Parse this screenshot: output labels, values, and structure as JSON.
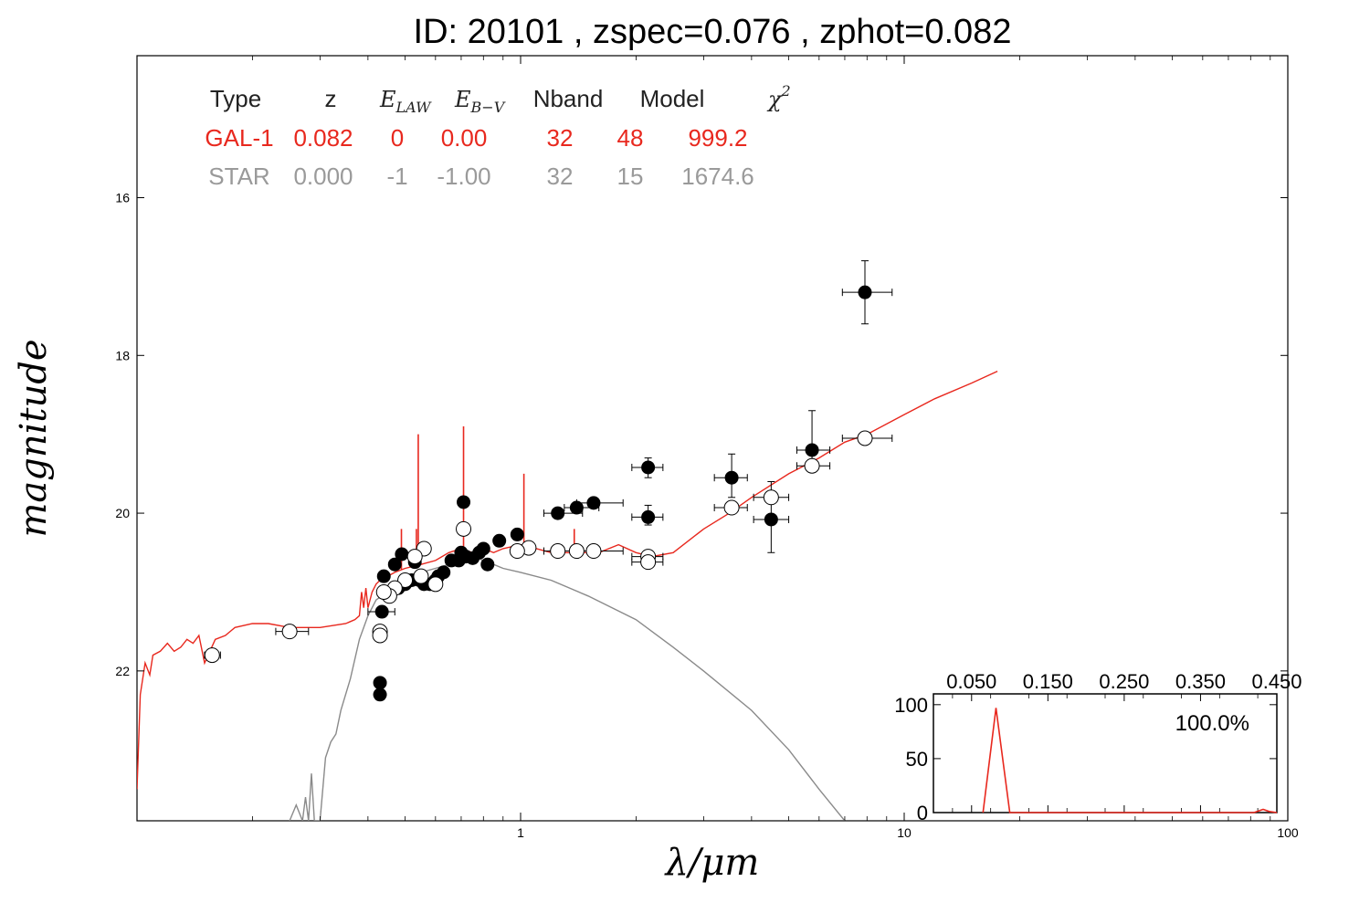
{
  "title": "ID:  20101 , zspec=0.076 , zphot=0.082",
  "chart_data": {
    "type": "scatter",
    "xlabel": "λ/μm",
    "ylabel": "magnitude",
    "x_scale": "log",
    "xlim": [
      0.1,
      100
    ],
    "ylim": [
      23.9,
      14.2
    ],
    "y_inverted": true,
    "x_ticks": [
      "1",
      "10",
      "100"
    ],
    "y_ticks": [
      "16",
      "18",
      "20",
      "22"
    ],
    "colors": {
      "galaxy": "#e8281e",
      "star": "#8a8a8a",
      "observed": "#000000"
    },
    "fit_table": {
      "headers": [
        "Type",
        "z",
        "E_LAW",
        "E_B−V",
        "Nband",
        "Model",
        "χ²"
      ],
      "rows": [
        {
          "type": "GAL-1",
          "z": "0.082",
          "e_law": "0",
          "e_bv": "0.00",
          "nband": "32",
          "model": "48",
          "chi2": "999.2",
          "color": "#e8281e"
        },
        {
          "type": "STAR",
          "z": "0.000",
          "e_law": "-1",
          "e_bv": "-1.00",
          "nband": "32",
          "model": "15",
          "chi2": "1674.6",
          "color": "#9a9a9a"
        }
      ]
    },
    "galaxy_model": [
      [
        0.1,
        23.5
      ],
      [
        0.102,
        22.3
      ],
      [
        0.105,
        21.9
      ],
      [
        0.108,
        22.05
      ],
      [
        0.11,
        21.8
      ],
      [
        0.115,
        21.75
      ],
      [
        0.12,
        21.65
      ],
      [
        0.125,
        21.75
      ],
      [
        0.13,
        21.7
      ],
      [
        0.135,
        21.6
      ],
      [
        0.14,
        21.65
      ],
      [
        0.145,
        21.55
      ],
      [
        0.15,
        21.9
      ],
      [
        0.16,
        21.6
      ],
      [
        0.17,
        21.55
      ],
      [
        0.18,
        21.45
      ],
      [
        0.2,
        21.4
      ],
      [
        0.22,
        21.4
      ],
      [
        0.25,
        21.45
      ],
      [
        0.3,
        21.45
      ],
      [
        0.35,
        21.4
      ],
      [
        0.37,
        21.35
      ],
      [
        0.38,
        21.3
      ],
      [
        0.385,
        21.0
      ],
      [
        0.39,
        21.2
      ],
      [
        0.395,
        20.95
      ],
      [
        0.4,
        21.2
      ],
      [
        0.41,
        21.0
      ],
      [
        0.42,
        20.9
      ],
      [
        0.43,
        20.85
      ],
      [
        0.45,
        20.8
      ],
      [
        0.47,
        20.75
      ],
      [
        0.5,
        20.7
      ],
      [
        0.55,
        20.65
      ],
      [
        0.6,
        20.6
      ],
      [
        0.65,
        20.5
      ],
      [
        0.7,
        20.45
      ],
      [
        0.75,
        20.5
      ],
      [
        0.8,
        20.45
      ],
      [
        0.85,
        20.5
      ],
      [
        0.9,
        20.45
      ],
      [
        1.0,
        20.4
      ],
      [
        1.1,
        20.45
      ],
      [
        1.2,
        20.5
      ],
      [
        1.4,
        20.5
      ],
      [
        1.6,
        20.5
      ],
      [
        1.8,
        20.4
      ],
      [
        2.0,
        20.5
      ],
      [
        2.2,
        20.55
      ],
      [
        2.5,
        20.5
      ],
      [
        3.0,
        20.2
      ],
      [
        3.5,
        20.0
      ],
      [
        4.0,
        19.8
      ],
      [
        5.0,
        19.5
      ],
      [
        6.0,
        19.3
      ],
      [
        7.0,
        19.1
      ],
      [
        8.0,
        19.0
      ],
      [
        10.0,
        18.75
      ],
      [
        12.0,
        18.55
      ],
      [
        15.0,
        18.35
      ],
      [
        17.5,
        18.2
      ]
    ],
    "galaxy_emission_lines": [
      {
        "x": 0.489,
        "peak": 20.2
      },
      {
        "x": 0.535,
        "peak": 20.2
      },
      {
        "x": 0.541,
        "peak": 19.0
      },
      {
        "x": 0.71,
        "peak": 18.9
      },
      {
        "x": 1.02,
        "peak": 19.5
      },
      {
        "x": 1.38,
        "peak": 20.2
      }
    ],
    "star_model": [
      [
        0.25,
        23.9
      ],
      [
        0.26,
        23.7
      ],
      [
        0.27,
        23.9
      ],
      [
        0.275,
        23.6
      ],
      [
        0.28,
        23.9
      ],
      [
        0.285,
        23.3
      ],
      [
        0.29,
        23.9
      ],
      [
        0.3,
        23.9
      ],
      [
        0.31,
        23.1
      ],
      [
        0.32,
        22.9
      ],
      [
        0.33,
        22.8
      ],
      [
        0.34,
        22.5
      ],
      [
        0.36,
        22.1
      ],
      [
        0.38,
        21.6
      ],
      [
        0.4,
        21.3
      ],
      [
        0.42,
        21.1
      ],
      [
        0.45,
        21.0
      ],
      [
        0.5,
        20.85
      ],
      [
        0.55,
        20.75
      ],
      [
        0.6,
        20.7
      ],
      [
        0.65,
        20.65
      ],
      [
        0.7,
        20.6
      ],
      [
        0.75,
        20.55
      ],
      [
        0.8,
        20.6
      ],
      [
        0.85,
        20.65
      ],
      [
        0.9,
        20.7
      ],
      [
        1.0,
        20.75
      ],
      [
        1.2,
        20.85
      ],
      [
        1.5,
        21.05
      ],
      [
        2.0,
        21.35
      ],
      [
        2.5,
        21.7
      ],
      [
        3.0,
        22.0
      ],
      [
        4.0,
        22.5
      ],
      [
        5.0,
        23.0
      ],
      [
        6.0,
        23.5
      ],
      [
        7.0,
        23.9
      ]
    ],
    "observed_points": [
      {
        "x": 7.9,
        "y": 17.2,
        "xerr": [
          6.9,
          9.3
        ],
        "yerr": [
          16.8,
          17.6
        ]
      },
      {
        "x": 5.75,
        "y": 19.2,
        "xerr": [
          5.25,
          6.4
        ],
        "yerr": [
          18.7,
          19.4
        ]
      },
      {
        "x": 4.5,
        "y": 20.08,
        "xerr": [
          4.05,
          5.0
        ],
        "yerr": [
          19.6,
          20.5
        ]
      },
      {
        "x": 3.55,
        "y": 19.55,
        "xerr": [
          3.2,
          3.9
        ],
        "yerr": [
          19.25,
          19.8
        ]
      },
      {
        "x": 2.15,
        "y": 19.42,
        "xerr": [
          1.95,
          2.35
        ],
        "yerr": [
          19.3,
          19.55
        ]
      },
      {
        "x": 2.15,
        "y": 20.05,
        "xerr": [
          1.95,
          2.35
        ],
        "yerr": [
          19.9,
          20.15
        ]
      },
      {
        "x": 1.25,
        "y": 20.0,
        "xerr": [
          1.15,
          1.45
        ]
      },
      {
        "x": 1.4,
        "y": 19.93,
        "xerr": [
          1.3,
          1.6
        ]
      },
      {
        "x": 1.55,
        "y": 19.87,
        "xerr": [
          1.4,
          1.85
        ]
      },
      {
        "x": 0.71,
        "y": 19.86
      },
      {
        "x": 0.98,
        "y": 20.27
      },
      {
        "x": 0.88,
        "y": 20.35
      },
      {
        "x": 0.8,
        "y": 20.45
      },
      {
        "x": 0.78,
        "y": 20.5
      },
      {
        "x": 0.75,
        "y": 20.57
      },
      {
        "x": 0.72,
        "y": 20.55
      },
      {
        "x": 0.69,
        "y": 20.6
      },
      {
        "x": 0.66,
        "y": 20.6
      },
      {
        "x": 0.7,
        "y": 20.5
      },
      {
        "x": 0.82,
        "y": 20.65
      },
      {
        "x": 0.63,
        "y": 20.75
      },
      {
        "x": 0.6,
        "y": 20.85
      },
      {
        "x": 0.58,
        "y": 20.9
      },
      {
        "x": 0.56,
        "y": 20.9
      },
      {
        "x": 0.61,
        "y": 20.8
      },
      {
        "x": 0.545,
        "y": 20.85
      },
      {
        "x": 0.52,
        "y": 20.85
      },
      {
        "x": 0.5,
        "y": 20.9
      },
      {
        "x": 0.48,
        "y": 20.95
      },
      {
        "x": 0.53,
        "y": 20.62
      },
      {
        "x": 0.49,
        "y": 20.52
      },
      {
        "x": 0.47,
        "y": 20.65
      },
      {
        "x": 0.44,
        "y": 20.8
      },
      {
        "x": 0.435,
        "y": 21.25,
        "xerr": [
          0.4,
          0.47
        ]
      },
      {
        "x": 0.43,
        "y": 22.15
      },
      {
        "x": 0.43,
        "y": 22.3
      }
    ],
    "model_points": [
      {
        "x": 7.9,
        "y": 19.05,
        "xerr": [
          6.9,
          9.3
        ]
      },
      {
        "x": 5.75,
        "y": 19.4,
        "xerr": [
          5.25,
          6.4
        ]
      },
      {
        "x": 4.5,
        "y": 19.8,
        "xerr": [
          4.05,
          5.0
        ]
      },
      {
        "x": 3.55,
        "y": 19.93,
        "xerr": [
          3.2,
          3.9
        ]
      },
      {
        "x": 2.15,
        "y": 20.55,
        "xerr": [
          1.95,
          2.35
        ]
      },
      {
        "x": 2.15,
        "y": 20.62,
        "xerr": [
          1.95,
          2.35
        ]
      },
      {
        "x": 1.55,
        "y": 20.48,
        "xerr": [
          1.4,
          1.85
        ]
      },
      {
        "x": 1.4,
        "y": 20.48,
        "xerr": [
          1.3,
          1.6
        ]
      },
      {
        "x": 1.25,
        "y": 20.48,
        "xerr": [
          1.15,
          1.45
        ]
      },
      {
        "x": 1.05,
        "y": 20.44
      },
      {
        "x": 0.98,
        "y": 20.48
      },
      {
        "x": 0.71,
        "y": 20.2
      },
      {
        "x": 0.56,
        "y": 20.45
      },
      {
        "x": 0.53,
        "y": 20.55
      },
      {
        "x": 0.6,
        "y": 20.9
      },
      {
        "x": 0.55,
        "y": 20.8
      },
      {
        "x": 0.5,
        "y": 20.85
      },
      {
        "x": 0.47,
        "y": 20.95
      },
      {
        "x": 0.455,
        "y": 21.05
      },
      {
        "x": 0.44,
        "y": 21.0
      },
      {
        "x": 0.43,
        "y": 21.5
      },
      {
        "x": 0.43,
        "y": 21.55
      },
      {
        "x": 0.25,
        "y": 21.5,
        "xerr": [
          0.23,
          0.28
        ]
      },
      {
        "x": 0.157,
        "y": 21.8,
        "xerr": [
          0.15,
          0.165
        ]
      }
    ],
    "inset": {
      "type": "line",
      "xlim": [
        0.0,
        0.45
      ],
      "ylim": [
        0,
        110
      ],
      "x_ticks": [
        "0.050",
        "0.150",
        "0.250",
        "0.350",
        "0.450"
      ],
      "y_ticks": [
        "100",
        "50",
        "0"
      ],
      "annotation": "100.0%",
      "pdf": [
        [
          0.0,
          0
        ],
        [
          0.065,
          0
        ],
        [
          0.082,
          97
        ],
        [
          0.1,
          0
        ],
        [
          0.2,
          0
        ],
        [
          0.3,
          0
        ],
        [
          0.4,
          0
        ],
        [
          0.42,
          0
        ],
        [
          0.432,
          3
        ],
        [
          0.44,
          1
        ],
        [
          0.45,
          0
        ]
      ]
    }
  }
}
